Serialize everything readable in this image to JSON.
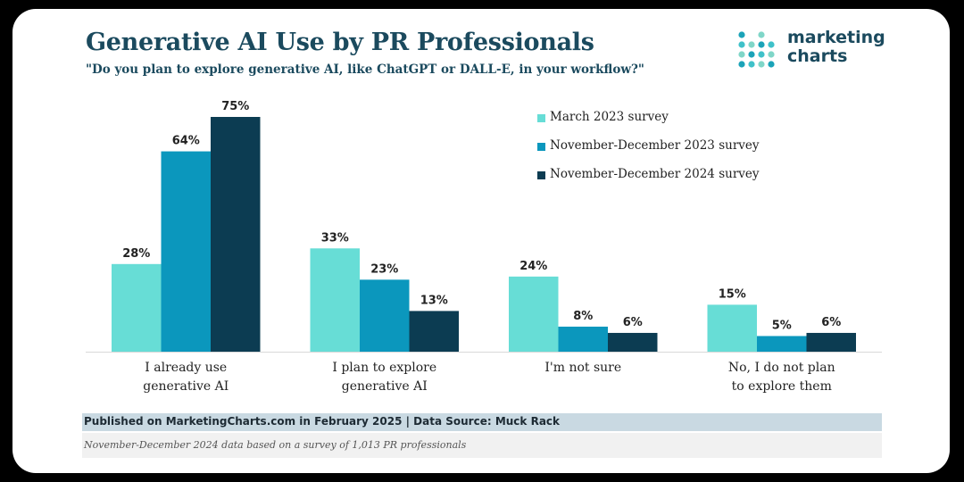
{
  "header": {
    "title": "Generative AI Use by PR Professionals",
    "subtitle": "\"Do you plan to explore generative AI, like ChatGPT or DALL-E, in your workflow?\""
  },
  "logo": {
    "line1": "marketing",
    "line2": "charts",
    "icon": "dot-grid-logo-icon"
  },
  "footer": {
    "source": "Published on MarketingCharts.com in February 2025 | Data Source: Muck Rack",
    "note": "November-December 2024 data based on a survey of 1,013 PR professionals"
  },
  "colors": {
    "march_2023": "#67ddd6",
    "novdec_2023": "#0b97bd",
    "novdec_2024": "#0c3c52",
    "title": "#1b4a5e",
    "logo_dots": [
      "#1ba3b8",
      "#3fc1c9",
      "#7fd6c8"
    ]
  },
  "chart_data": {
    "type": "bar",
    "categories": [
      [
        "I already use",
        "generative AI"
      ],
      [
        "I plan to explore",
        "generative AI"
      ],
      [
        "I'm not sure"
      ],
      [
        "No, I do not plan",
        "to explore them"
      ]
    ],
    "series": [
      {
        "name": "March 2023 survey",
        "color": "#67ddd6",
        "values": [
          28,
          33,
          24,
          15
        ]
      },
      {
        "name": "November-December 2023 survey",
        "color": "#0b97bd",
        "values": [
          64,
          23,
          8,
          5
        ]
      },
      {
        "name": "November-December 2024 survey",
        "color": "#0c3c52",
        "values": [
          75,
          13,
          6,
          6
        ]
      }
    ],
    "value_suffix": "%",
    "ylim": [
      0,
      75
    ],
    "grid": false,
    "legend_position": "top-right",
    "title": "Generative AI Use by PR Professionals",
    "xlabel": "",
    "ylabel": ""
  }
}
